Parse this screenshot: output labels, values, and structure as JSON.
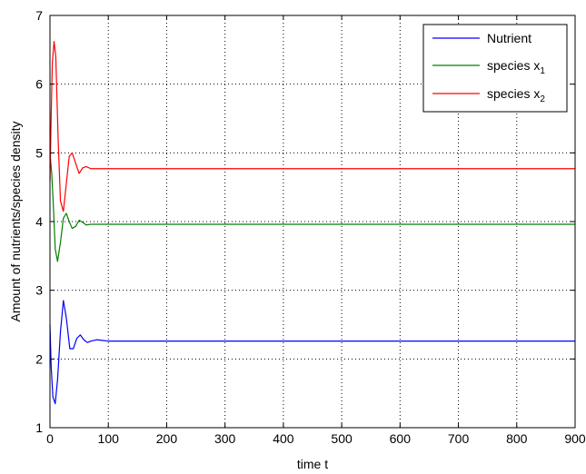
{
  "chart_data": {
    "type": "line",
    "xlabel": "time t",
    "ylabel": "Amount of nutrients/species density",
    "xlim": [
      0,
      900
    ],
    "ylim": [
      1,
      7
    ],
    "xticks": [
      "0",
      "100",
      "200",
      "300",
      "400",
      "500",
      "600",
      "700",
      "800",
      "900"
    ],
    "yticks": [
      "1",
      "2",
      "3",
      "4",
      "5",
      "6",
      "7"
    ],
    "grid": true,
    "legend_position": "top-right",
    "series": [
      {
        "name": "Nutrient",
        "legend_label": "Nutrient",
        "legend_sub": "",
        "color": "#0000ff",
        "x": [
          0,
          2,
          5,
          9,
          13,
          18,
          23,
          28,
          34,
          40,
          46,
          52,
          58,
          64,
          70,
          80,
          90,
          100,
          900
        ],
        "y": [
          2.5,
          1.9,
          1.45,
          1.35,
          1.7,
          2.4,
          2.85,
          2.6,
          2.15,
          2.15,
          2.3,
          2.35,
          2.28,
          2.24,
          2.26,
          2.28,
          2.27,
          2.26,
          2.26
        ]
      },
      {
        "name": "species x1",
        "legend_label": "species x",
        "legend_sub": "1",
        "color": "#008000",
        "x": [
          0,
          3,
          6,
          9,
          13,
          18,
          23,
          28,
          33,
          38,
          44,
          50,
          56,
          62,
          70,
          80,
          900
        ],
        "y": [
          5.0,
          4.7,
          4.2,
          3.6,
          3.42,
          3.7,
          4.05,
          4.12,
          4.0,
          3.9,
          3.93,
          4.02,
          3.99,
          3.95,
          3.96,
          3.96,
          3.96
        ]
      },
      {
        "name": "species x2",
        "legend_label": "species x",
        "legend_sub": "2",
        "color": "#ff0000",
        "x": [
          0,
          2,
          4,
          7,
          10,
          14,
          18,
          23,
          28,
          33,
          38,
          44,
          50,
          56,
          62,
          70,
          80,
          900
        ],
        "y": [
          4.6,
          5.5,
          6.3,
          6.62,
          6.4,
          5.2,
          4.3,
          4.15,
          4.55,
          4.95,
          5.0,
          4.85,
          4.7,
          4.78,
          4.8,
          4.77,
          4.77,
          4.77
        ]
      }
    ]
  }
}
